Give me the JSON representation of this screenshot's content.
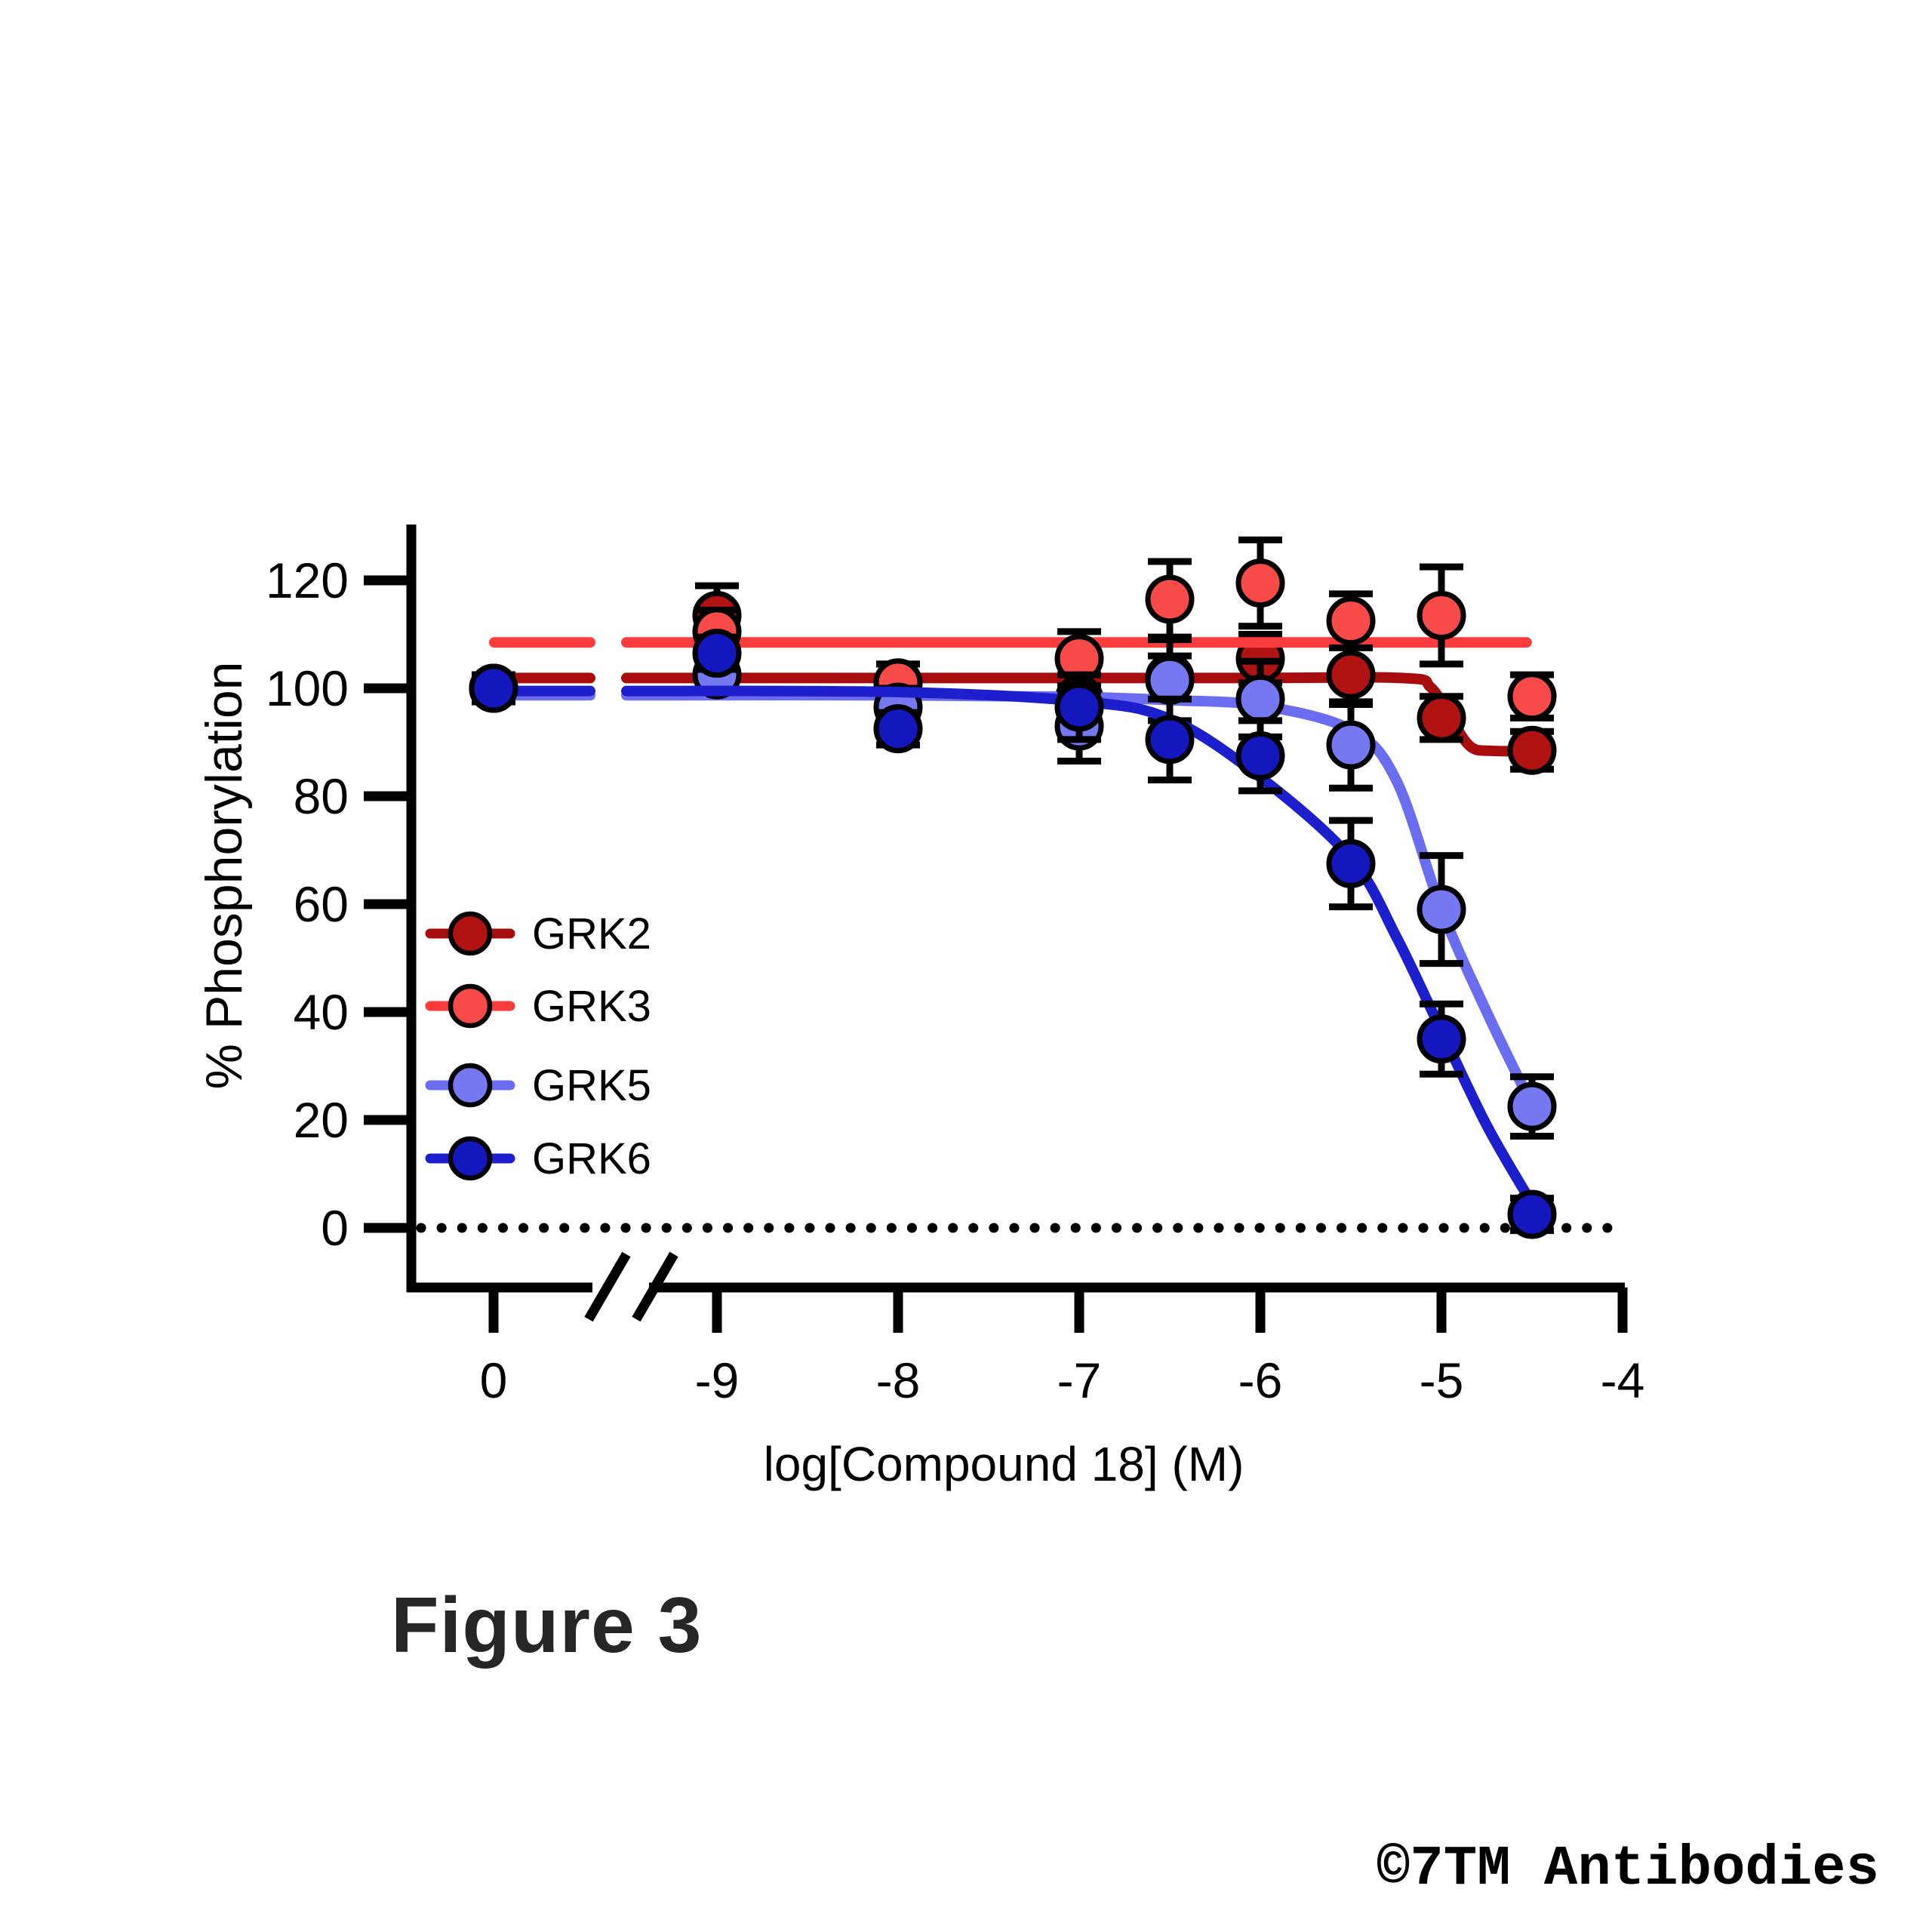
{
  "figure": {
    "caption": "Figure 3",
    "watermark": "©7TM Antibodies",
    "background_color": "#FFFFFF"
  },
  "chart_data": {
    "type": "scatter",
    "subtype": "dose-response inhibition curves with error bars and fitted curves",
    "title": "",
    "xlabel": "log[Compound 18] (M)",
    "ylabel": "% Phosphorylation",
    "x_axis": {
      "control_tick_label": "0",
      "log_tick_labels": [
        "-9",
        "-8",
        "-7",
        "-6",
        "-5",
        "-4"
      ],
      "log_tick_values": [
        -9,
        -8,
        -7,
        -6,
        -5,
        -4
      ],
      "axis_break": "double slash between control (0) and -9"
    },
    "y_axis": {
      "tick_labels": [
        "0",
        "20",
        "40",
        "60",
        "80",
        "100",
        "120"
      ],
      "tick_values": [
        0,
        20,
        40,
        60,
        80,
        100,
        120
      ],
      "range_shown": [
        -12,
        130
      ]
    },
    "zero_baseline": {
      "y": 0,
      "style": "dotted",
      "color": "#000000"
    },
    "legend": {
      "position": "middle-left inside plot",
      "entries": [
        "GRK2",
        "GRK3",
        "GRK5",
        "GRK6"
      ]
    },
    "grid": "off",
    "series": [
      {
        "name": "GRK2",
        "marker_color": "#B11212",
        "line_color": "#A80D0D",
        "control_point": {
          "x_label": "0",
          "y": 100,
          "err": 2.5
        },
        "points": [
          {
            "x": -9,
            "y": 113.5,
            "err": 5.5
          },
          {
            "x": -8,
            "y": 101,
            "err": 3.5
          },
          {
            "x": -7,
            "y": 98,
            "err": 4.5
          },
          {
            "x": -6.5,
            "y": 102,
            "err": 4
          },
          {
            "x": -6,
            "y": 105.5,
            "err": 4.5
          },
          {
            "x": -5.5,
            "y": 102.5,
            "err": 5.5
          },
          {
            "x": -5,
            "y": 94.5,
            "err": 4
          },
          {
            "x": -4.5,
            "y": 88.5,
            "err": 3.5
          }
        ],
        "fit_plateau_left": 101.9,
        "fit_curve": [
          [
            -9.5,
            101.9
          ],
          [
            -6.2,
            101.9
          ],
          [
            -5.22,
            101.9
          ],
          [
            -5.06,
            100.2
          ],
          [
            -4.95,
            94.5
          ],
          [
            -4.84,
            89.2
          ],
          [
            -4.72,
            88.4
          ],
          [
            -4.53,
            88.4
          ]
        ]
      },
      {
        "name": "GRK3",
        "marker_color": "#F94A4A",
        "line_color": "#FA3C3C",
        "control_point": {
          "x_label": "0",
          "y": 100,
          "err": 2.5
        },
        "points": [
          {
            "x": -9,
            "y": 110.5,
            "err": 4
          },
          {
            "x": -8,
            "y": 101,
            "err": 3.5
          },
          {
            "x": -7,
            "y": 105.5,
            "err": 5
          },
          {
            "x": -6.5,
            "y": 116.5,
            "err": 7
          },
          {
            "x": -6,
            "y": 119.5,
            "err": 8
          },
          {
            "x": -5.5,
            "y": 112.5,
            "err": 5
          },
          {
            "x": -5,
            "y": 113.5,
            "err": 9
          },
          {
            "x": -4.5,
            "y": 98.5,
            "err": 4
          }
        ],
        "fit_plateau_left": 108.5,
        "fit_curve": [
          [
            -9.5,
            108.5
          ],
          [
            -4.53,
            108.5
          ]
        ]
      },
      {
        "name": "GRK5",
        "marker_color": "#7678F2",
        "line_color": "#6B6DF0",
        "control_point": {
          "x_label": "0",
          "y": 100,
          "err": 2.5
        },
        "points": [
          {
            "x": -9,
            "y": 102.5,
            "err": 3
          },
          {
            "x": -8,
            "y": 96.5,
            "err": 3.5
          },
          {
            "x": -7,
            "y": 93,
            "err": 6.5
          },
          {
            "x": -6.5,
            "y": 101.5,
            "err": 7.5
          },
          {
            "x": -6,
            "y": 98,
            "err": 7
          },
          {
            "x": -5.5,
            "y": 89.5,
            "err": 8
          },
          {
            "x": -5,
            "y": 59,
            "err": 10
          },
          {
            "x": -4.5,
            "y": 22.5,
            "err": 5.5
          }
        ],
        "fit_plateau_left": 98.7,
        "fit_curve": [
          [
            -9.5,
            98.7
          ],
          [
            -8,
            98.7
          ],
          [
            -7,
            98.4
          ],
          [
            -6.5,
            97.8
          ],
          [
            -6,
            96.8
          ],
          [
            -5.5,
            92.3
          ],
          [
            -5.25,
            83
          ],
          [
            -5,
            59
          ],
          [
            -4.75,
            40
          ],
          [
            -4.5,
            22.7
          ]
        ]
      },
      {
        "name": "GRK6",
        "marker_color": "#1517BE",
        "line_color": "#1D1FCC",
        "control_point": {
          "x_label": "0",
          "y": 100,
          "err": 2.5
        },
        "points": [
          {
            "x": -9,
            "y": 106.5,
            "err": 3
          },
          {
            "x": -8,
            "y": 92.5,
            "err": 3
          },
          {
            "x": -7,
            "y": 96.5,
            "err": 6
          },
          {
            "x": -6.5,
            "y": 90.5,
            "err": 7.5
          },
          {
            "x": -6,
            "y": 87.5,
            "err": 6.5
          },
          {
            "x": -5.5,
            "y": 67.5,
            "err": 8
          },
          {
            "x": -5,
            "y": 35,
            "err": 6.5
          },
          {
            "x": -4.5,
            "y": 2.5,
            "err": 3
          }
        ],
        "fit_plateau_left": 99.5,
        "fit_curve": [
          [
            -9.5,
            99.5
          ],
          [
            -8,
            99.3
          ],
          [
            -7,
            97.6
          ],
          [
            -6.5,
            94.3
          ],
          [
            -6,
            83.5
          ],
          [
            -5.5,
            68.5
          ],
          [
            -5.25,
            54
          ],
          [
            -5,
            36.5
          ],
          [
            -4.75,
            19
          ],
          [
            -4.5,
            4.5
          ]
        ]
      }
    ]
  }
}
